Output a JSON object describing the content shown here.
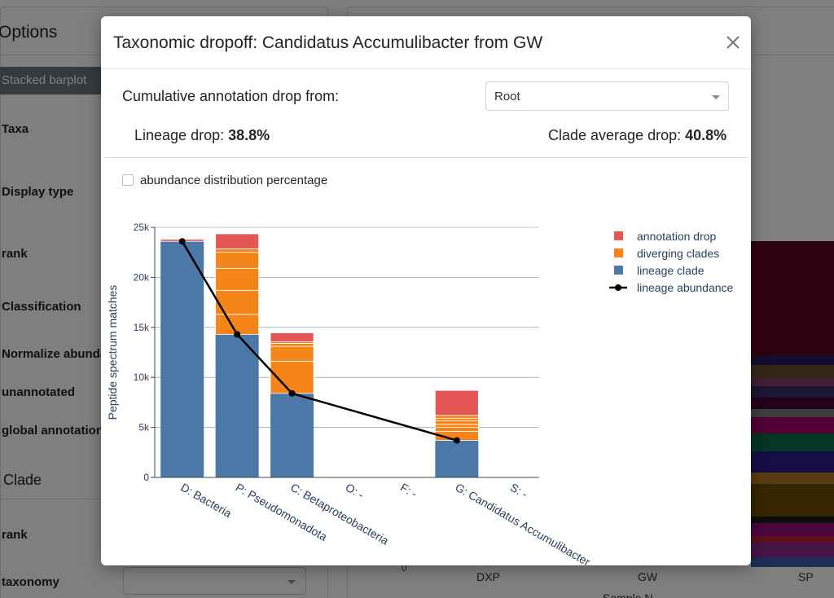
{
  "background": {
    "panel_title": "Options",
    "view_button": "Stacked barplot",
    "labels": [
      "Taxa",
      "Display type",
      "rank",
      "Classification",
      "Normalize abundances",
      "unannotated",
      "global annotation"
    ],
    "clade_section": "Clade",
    "clade_labels": [
      "rank",
      "taxonomy"
    ],
    "sample_ticks": [
      "DXP",
      "GW",
      "SP"
    ],
    "sample_axis_label": "Sample N",
    "y_zero": "0"
  },
  "modal": {
    "title": "Taxonomic dropoff: Candidatus Accumulibacter from GW",
    "close_icon": "close-icon",
    "drop_from_label": "Cumulative annotation drop from:",
    "drop_from_value": "Root",
    "lineage_drop_label": "Lineage drop:",
    "lineage_drop_value": "38.8%",
    "clade_avg_label": "Clade average drop:",
    "clade_avg_value": "40.8%",
    "checkbox_label": "abundance distribution percentage",
    "checkbox_checked": false
  },
  "chart_data": {
    "type": "bar",
    "stacked": true,
    "categories": [
      "D: Bacteria",
      "P: Pseudomonadota",
      "C: Betaproteobacteria",
      "O: -",
      "F: -",
      "G: Candidatus Accumulibacter",
      "S: -"
    ],
    "ylabel": "Peptide spectrum matches",
    "ylim": [
      0,
      25000
    ],
    "yticks": [
      0,
      5000,
      10000,
      15000,
      20000,
      25000
    ],
    "ytick_labels": [
      "0",
      "5k",
      "10k",
      "15k",
      "20k",
      "25k"
    ],
    "grid": true,
    "legend_position": "top-right",
    "colors": {
      "lineage clade": "#4c78a8",
      "diverging clades": "#f58518",
      "annotation drop": "#e45756",
      "lineage abundance": "#000000"
    },
    "series": [
      {
        "name": "lineage clade",
        "values": [
          23600,
          14300,
          8400,
          null,
          null,
          3700,
          null
        ]
      },
      {
        "name": "diverging clades",
        "segments": [
          [],
          [
            2000,
            2400,
            2200,
            1600,
            350
          ],
          [
            3200,
            1500,
            300,
            150
          ],
          [],
          [],
          [
            900,
            400,
            300,
            350,
            250,
            300
          ],
          []
        ]
      },
      {
        "name": "annotation drop",
        "values": [
          200,
          1500,
          900,
          null,
          null,
          2500,
          null
        ]
      }
    ],
    "line": {
      "name": "lineage abundance",
      "values": [
        23600,
        14300,
        8400,
        null,
        null,
        3700,
        null
      ]
    },
    "legend": [
      "annotation drop",
      "diverging clades",
      "lineage clade",
      "lineage abundance"
    ]
  }
}
